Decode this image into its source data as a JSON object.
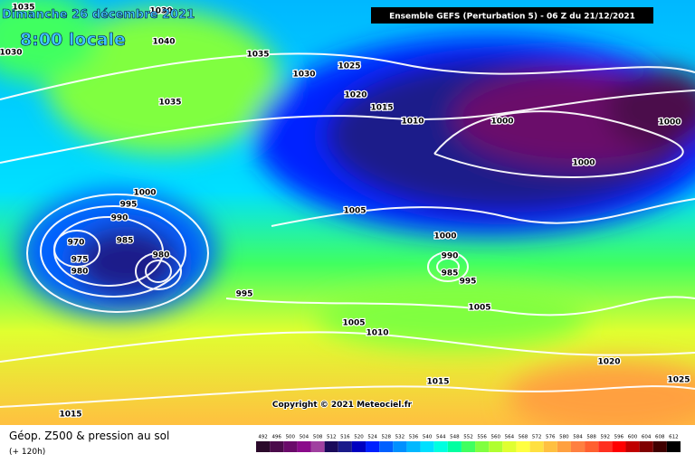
{
  "header": {
    "date": "Dimanche 26 décembre 2021",
    "time": "8:00 locale",
    "run": "Ensemble GEFS  (Perturbation 5)  -  06 Z du 21/12/2021",
    "copyright": "Copyright © 2021 Meteociel.fr"
  },
  "footer": {
    "title": "Géop. Z500 & pression au sol",
    "lead": "(+ 120h)"
  },
  "isobars": [
    "1035",
    "1030",
    "1030",
    "1040",
    "1035",
    "1030",
    "1025",
    "1035",
    "1020",
    "1015",
    "1010",
    "1000",
    "1000",
    "1000",
    "1000",
    "995",
    "990",
    "985",
    "970",
    "975",
    "980",
    "980",
    "1005",
    "1000",
    "990",
    "985",
    "995",
    "995",
    "1005",
    "1005",
    "1010",
    "1020",
    "1015",
    "1025",
    "1015"
  ],
  "scale": {
    "values": [
      492,
      496,
      500,
      504,
      508,
      512,
      516,
      520,
      524,
      528,
      532,
      536,
      540,
      544,
      548,
      552,
      556,
      560,
      564,
      568,
      572,
      576,
      580,
      584,
      588,
      592,
      596,
      600,
      604,
      608,
      612
    ],
    "colors": [
      "#2b0a2b",
      "#4b0b4b",
      "#6a0a6a",
      "#8a0a8a",
      "#a040a0",
      "#1a0a5a",
      "#1a1a8a",
      "#0000c0",
      "#0020ff",
      "#0060ff",
      "#0090ff",
      "#00b8ff",
      "#00e0ff",
      "#00ffe0",
      "#00ffa0",
      "#40ff60",
      "#80ff40",
      "#b0ff30",
      "#e0ff30",
      "#ffff40",
      "#ffe040",
      "#ffc040",
      "#ffa040",
      "#ff8040",
      "#ff6030",
      "#ff3020",
      "#ff0000",
      "#c00000",
      "#800000",
      "#400000",
      "#000000"
    ]
  }
}
